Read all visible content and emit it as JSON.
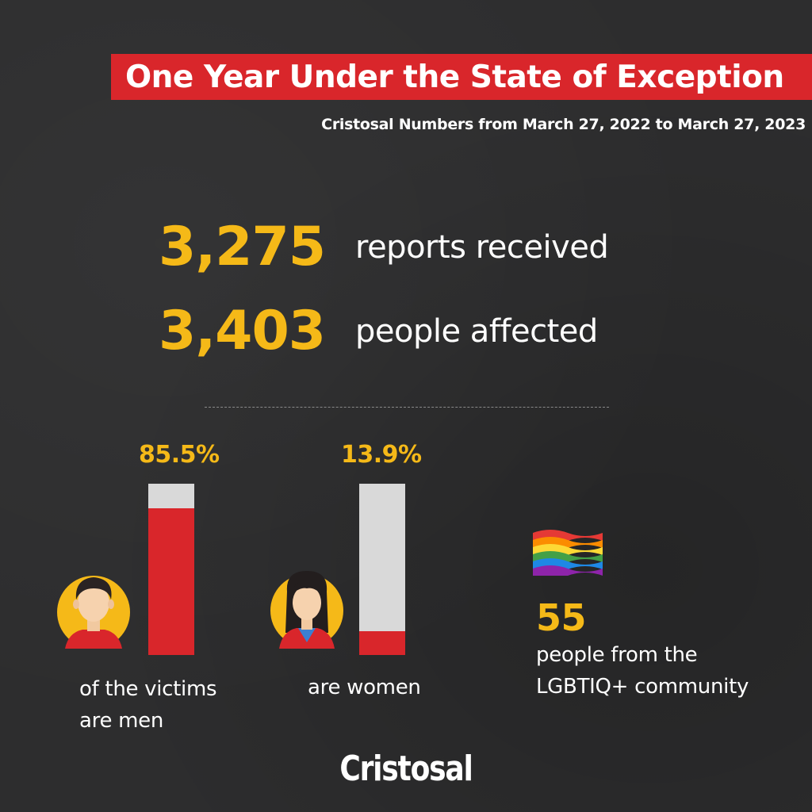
{
  "colors": {
    "accent_red": "#d9262b",
    "accent_yellow": "#f5b918",
    "bar_track": "#d9d9d9",
    "background": "#2d2d2e"
  },
  "header": {
    "title": "One Year Under the State of Exception",
    "subtitle": "Cristosal Numbers from March 27, 2022 to March 27, 2023"
  },
  "stats": [
    {
      "value": "3,275",
      "label": "reports received"
    },
    {
      "value": "3,403",
      "label": "people affected"
    }
  ],
  "chart_data": {
    "type": "bar",
    "categories": [
      "men",
      "women"
    ],
    "values": [
      85.5,
      13.9
    ],
    "value_labels": [
      "85.5%",
      "13.9%"
    ],
    "ylim": [
      0,
      100
    ],
    "title": "",
    "xlabel": "",
    "ylabel": ""
  },
  "captions": {
    "men": [
      "of the victims",
      "are men"
    ],
    "women": "are women"
  },
  "lgbtiq": {
    "value": "55",
    "label_lines": [
      "people from the",
      "LGBTIQ+ community"
    ],
    "icon": "rainbow-flag-icon"
  },
  "icons": {
    "men": "man-avatar-icon",
    "women": "woman-avatar-icon"
  },
  "brand": "Cristosal"
}
